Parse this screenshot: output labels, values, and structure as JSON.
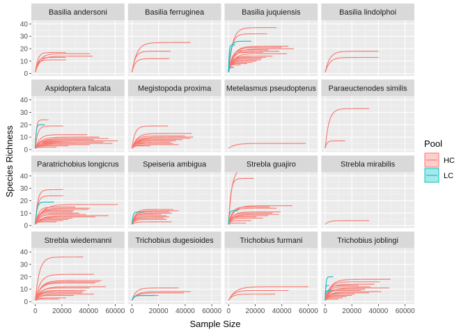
{
  "chart_data": {
    "type": "line",
    "title": "",
    "xlabel": "Sample Size",
    "ylabel": "Species Richness",
    "xlim": [
      -3000,
      67000
    ],
    "ylim": [
      -2,
      43
    ],
    "x_ticks": [
      0,
      20000,
      40000,
      60000
    ],
    "x_tick_labels": [
      "0",
      "20000",
      "40000",
      "60000"
    ],
    "y_ticks": [
      0,
      10,
      20,
      30,
      40
    ],
    "y_tick_labels": [
      "0",
      "10",
      "20",
      "30",
      "40"
    ],
    "grid": true,
    "legend": {
      "title": "Pool",
      "placement": "right",
      "entries": [
        {
          "label": "HC",
          "color": "#F8766D"
        },
        {
          "label": "LC",
          "color": "#00BFC4"
        }
      ]
    },
    "colors": {
      "HC": "#F8766D",
      "LC": "#00BFC4"
    },
    "panels": [
      {
        "name": "Basilia andersoni",
        "curves": [
          {
            "pool": "HC",
            "n": 23000,
            "s": 17
          },
          {
            "pool": "HC",
            "n": 41000,
            "s": 16
          },
          {
            "pool": "HC",
            "n": 43000,
            "s": 14
          },
          {
            "pool": "HC",
            "n": 23000,
            "s": 13
          },
          {
            "pool": "HC",
            "n": 23000,
            "s": 11
          }
        ]
      },
      {
        "name": "Basilia ferruginea",
        "curves": [
          {
            "pool": "HC",
            "n": 44000,
            "s": 25
          },
          {
            "pool": "HC",
            "n": 29000,
            "s": 18
          },
          {
            "pool": "HC",
            "n": 28000,
            "s": 12
          }
        ]
      },
      {
        "name": "Basilia juquiensis",
        "curves": [
          {
            "pool": "HC",
            "n": 36000,
            "s": 37
          },
          {
            "pool": "HC",
            "n": 29000,
            "s": 32
          },
          {
            "pool": "HC",
            "n": 45000,
            "s": 22
          },
          {
            "pool": "HC",
            "n": 40000,
            "s": 21
          },
          {
            "pool": "HC",
            "n": 49000,
            "s": 20
          },
          {
            "pool": "HC",
            "n": 30000,
            "s": 19
          },
          {
            "pool": "HC",
            "n": 38000,
            "s": 18
          },
          {
            "pool": "HC",
            "n": 26000,
            "s": 17
          },
          {
            "pool": "HC",
            "n": 44000,
            "s": 16
          },
          {
            "pool": "HC",
            "n": 33000,
            "s": 14
          },
          {
            "pool": "HC",
            "n": 25000,
            "s": 12
          },
          {
            "pool": "HC",
            "n": 24000,
            "s": 11
          },
          {
            "pool": "HC",
            "n": 21000,
            "s": 10
          },
          {
            "pool": "HC",
            "n": 18000,
            "s": 9
          },
          {
            "pool": "HC",
            "n": 28000,
            "s": 13
          },
          {
            "pool": "HC",
            "n": 14000,
            "s": 8
          },
          {
            "pool": "HC",
            "n": 9000,
            "s": 7
          },
          {
            "pool": "HC",
            "n": 4000,
            "s": 5
          },
          {
            "pool": "LC",
            "n": 17000,
            "s": 26
          },
          {
            "pool": "LC",
            "n": 5000,
            "s": 23
          },
          {
            "pool": "LC",
            "n": 3500,
            "s": 5
          }
        ]
      },
      {
        "name": "Basilia lindolphoi",
        "curves": [
          {
            "pool": "HC",
            "n": 40000,
            "s": 18
          },
          {
            "pool": "HC",
            "n": 40000,
            "s": 13
          }
        ]
      },
      {
        "name": "Aspidoptera falcata",
        "curves": [
          {
            "pool": "HC",
            "n": 10000,
            "s": 24
          },
          {
            "pool": "HC",
            "n": 21000,
            "s": 19
          },
          {
            "pool": "HC",
            "n": 39000,
            "s": 12
          },
          {
            "pool": "HC",
            "n": 48000,
            "s": 10
          },
          {
            "pool": "HC",
            "n": 55000,
            "s": 9
          },
          {
            "pool": "HC",
            "n": 62000,
            "s": 7
          },
          {
            "pool": "HC",
            "n": 44000,
            "s": 8
          },
          {
            "pool": "HC",
            "n": 51000,
            "s": 6
          },
          {
            "pool": "HC",
            "n": 58000,
            "s": 5
          },
          {
            "pool": "HC",
            "n": 36000,
            "s": 7
          },
          {
            "pool": "HC",
            "n": 30000,
            "s": 5
          },
          {
            "pool": "HC",
            "n": 41000,
            "s": 4
          },
          {
            "pool": "HC",
            "n": 25000,
            "s": 3
          },
          {
            "pool": "HC",
            "n": 20000,
            "s": 6
          },
          {
            "pool": "HC",
            "n": 16000,
            "s": 2
          },
          {
            "pool": "LC",
            "n": 7000,
            "s": 20
          }
        ]
      },
      {
        "name": "Megistopoda proxima",
        "curves": [
          {
            "pool": "HC",
            "n": 27000,
            "s": 19
          },
          {
            "pool": "HC",
            "n": 45000,
            "s": 13
          },
          {
            "pool": "HC",
            "n": 40000,
            "s": 11
          },
          {
            "pool": "HC",
            "n": 46000,
            "s": 10
          },
          {
            "pool": "HC",
            "n": 44000,
            "s": 9
          },
          {
            "pool": "HC",
            "n": 38000,
            "s": 8
          },
          {
            "pool": "HC",
            "n": 33000,
            "s": 7
          },
          {
            "pool": "HC",
            "n": 29000,
            "s": 6
          },
          {
            "pool": "HC",
            "n": 31000,
            "s": 5
          },
          {
            "pool": "HC",
            "n": 35000,
            "s": 4
          },
          {
            "pool": "HC",
            "n": 14000,
            "s": 3
          },
          {
            "pool": "HC",
            "n": 10000,
            "s": 5
          }
        ]
      },
      {
        "name": "Metelasmus pseudopterus",
        "curves": [
          {
            "pool": "HC",
            "n": 58000,
            "s": 5
          }
        ]
      },
      {
        "name": "Paraeuctenodes similis",
        "curves": [
          {
            "pool": "HC",
            "n": 33000,
            "s": 33
          },
          {
            "pool": "HC",
            "n": 15000,
            "s": 7
          }
        ]
      },
      {
        "name": "Paratrichobius longicrus",
        "curves": [
          {
            "pool": "HC",
            "n": 21000,
            "s": 29
          },
          {
            "pool": "HC",
            "n": 21000,
            "s": 24
          },
          {
            "pool": "HC",
            "n": 62000,
            "s": 17
          },
          {
            "pool": "HC",
            "n": 30000,
            "s": 15
          },
          {
            "pool": "HC",
            "n": 41000,
            "s": 14
          },
          {
            "pool": "HC",
            "n": 40000,
            "s": 13
          },
          {
            "pool": "HC",
            "n": 29000,
            "s": 12
          },
          {
            "pool": "HC",
            "n": 28000,
            "s": 11
          },
          {
            "pool": "HC",
            "n": 33000,
            "s": 10
          },
          {
            "pool": "HC",
            "n": 38000,
            "s": 9
          },
          {
            "pool": "HC",
            "n": 55000,
            "s": 8
          },
          {
            "pool": "HC",
            "n": 45000,
            "s": 7
          },
          {
            "pool": "HC",
            "n": 28000,
            "s": 6
          },
          {
            "pool": "HC",
            "n": 25000,
            "s": 5
          },
          {
            "pool": "HC",
            "n": 21000,
            "s": 4
          },
          {
            "pool": "HC",
            "n": 16000,
            "s": 3
          },
          {
            "pool": "LC",
            "n": 14000,
            "s": 19
          }
        ]
      },
      {
        "name": "Speiseria ambigua",
        "curves": [
          {
            "pool": "HC",
            "n": 31000,
            "s": 13
          },
          {
            "pool": "HC",
            "n": 35000,
            "s": 12
          },
          {
            "pool": "HC",
            "n": 28000,
            "s": 11
          },
          {
            "pool": "HC",
            "n": 30000,
            "s": 10
          },
          {
            "pool": "HC",
            "n": 22000,
            "s": 9
          },
          {
            "pool": "HC",
            "n": 26000,
            "s": 8
          },
          {
            "pool": "HC",
            "n": 28000,
            "s": 7
          },
          {
            "pool": "HC",
            "n": 24000,
            "s": 6
          },
          {
            "pool": "HC",
            "n": 26000,
            "s": 5
          },
          {
            "pool": "HC",
            "n": 30000,
            "s": 3
          },
          {
            "pool": "LC",
            "n": 9000,
            "s": 11
          }
        ]
      },
      {
        "name": "Strebla guajiro",
        "curves": [
          {
            "pool": "HC",
            "n": 29000,
            "s": 46
          },
          {
            "pool": "HC",
            "n": 19000,
            "s": 38
          },
          {
            "pool": "HC",
            "n": 48000,
            "s": 16
          },
          {
            "pool": "HC",
            "n": 31000,
            "s": 15
          },
          {
            "pool": "HC",
            "n": 36000,
            "s": 14
          },
          {
            "pool": "HC",
            "n": 39000,
            "s": 11
          },
          {
            "pool": "HC",
            "n": 33000,
            "s": 10
          },
          {
            "pool": "HC",
            "n": 38000,
            "s": 9
          },
          {
            "pool": "HC",
            "n": 30000,
            "s": 8
          },
          {
            "pool": "HC",
            "n": 21000,
            "s": 7
          },
          {
            "pool": "HC",
            "n": 26000,
            "s": 6
          },
          {
            "pool": "HC",
            "n": 17000,
            "s": 4
          },
          {
            "pool": "HC",
            "n": 13000,
            "s": 2
          },
          {
            "pool": "LC",
            "n": 7000,
            "s": 12
          }
        ]
      },
      {
        "name": "Strebla mirabilis",
        "curves": [
          {
            "pool": "HC",
            "n": 33000,
            "s": 4
          }
        ]
      },
      {
        "name": "Strebla wiedemanni",
        "curves": [
          {
            "pool": "HC",
            "n": 36000,
            "s": 36
          },
          {
            "pool": "HC",
            "n": 44000,
            "s": 22
          },
          {
            "pool": "HC",
            "n": 50000,
            "s": 17
          },
          {
            "pool": "HC",
            "n": 48000,
            "s": 16
          },
          {
            "pool": "HC",
            "n": 45000,
            "s": 15
          },
          {
            "pool": "HC",
            "n": 53000,
            "s": 12
          },
          {
            "pool": "HC",
            "n": 41000,
            "s": 11
          },
          {
            "pool": "HC",
            "n": 38000,
            "s": 9
          },
          {
            "pool": "HC",
            "n": 36000,
            "s": 8
          },
          {
            "pool": "HC",
            "n": 35000,
            "s": 7
          },
          {
            "pool": "HC",
            "n": 44000,
            "s": 6
          },
          {
            "pool": "HC",
            "n": 29000,
            "s": 5
          },
          {
            "pool": "HC",
            "n": 23000,
            "s": 3
          },
          {
            "pool": "HC",
            "n": 18000,
            "s": 2
          }
        ]
      },
      {
        "name": "Trichobius dugesioides",
        "curves": [
          {
            "pool": "HC",
            "n": 35000,
            "s": 11
          },
          {
            "pool": "HC",
            "n": 44000,
            "s": 8
          },
          {
            "pool": "HC",
            "n": 39000,
            "s": 7
          },
          {
            "pool": "HC",
            "n": 20000,
            "s": 5
          },
          {
            "pool": "LC",
            "n": 17000,
            "s": 5
          }
        ]
      },
      {
        "name": "Trichobius furmani",
        "curves": [
          {
            "pool": "HC",
            "n": 60000,
            "s": 12
          },
          {
            "pool": "HC",
            "n": 45000,
            "s": 9
          },
          {
            "pool": "HC",
            "n": 35000,
            "s": 6
          }
        ]
      },
      {
        "name": "Trichobius joblingi",
        "curves": [
          {
            "pool": "HC",
            "n": 49000,
            "s": 18
          },
          {
            "pool": "HC",
            "n": 41000,
            "s": 16
          },
          {
            "pool": "HC",
            "n": 37000,
            "s": 14
          },
          {
            "pool": "HC",
            "n": 25000,
            "s": 13
          },
          {
            "pool": "HC",
            "n": 34000,
            "s": 12
          },
          {
            "pool": "HC",
            "n": 48000,
            "s": 11
          },
          {
            "pool": "HC",
            "n": 30000,
            "s": 10
          },
          {
            "pool": "HC",
            "n": 27000,
            "s": 9
          },
          {
            "pool": "HC",
            "n": 42000,
            "s": 8
          },
          {
            "pool": "HC",
            "n": 33000,
            "s": 7
          },
          {
            "pool": "HC",
            "n": 22000,
            "s": 6
          },
          {
            "pool": "HC",
            "n": 20000,
            "s": 5
          },
          {
            "pool": "HC",
            "n": 16000,
            "s": 4
          },
          {
            "pool": "HC",
            "n": 13000,
            "s": 3
          },
          {
            "pool": "HC",
            "n": 10000,
            "s": 2
          },
          {
            "pool": "LC",
            "n": 6000,
            "s": 20
          },
          {
            "pool": "LC",
            "n": 3000,
            "s": 13
          },
          {
            "pool": "LC",
            "n": 5000,
            "s": 9
          }
        ]
      }
    ]
  }
}
